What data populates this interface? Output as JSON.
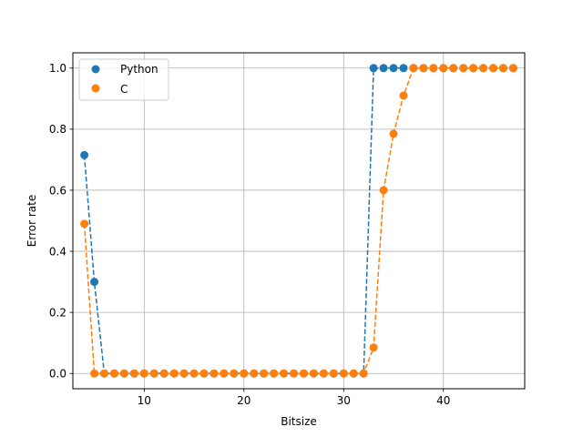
{
  "chart_data": {
    "type": "scatter",
    "title": "",
    "xlabel": "Bitsize",
    "ylabel": "Error rate",
    "xlim": [
      2.85,
      48.15
    ],
    "ylim": [
      -0.05,
      1.05
    ],
    "xticks": [
      10,
      20,
      30,
      40
    ],
    "yticks": [
      0.0,
      0.2,
      0.4,
      0.6,
      0.8,
      1.0
    ],
    "xtick_labels": [
      "10",
      "20",
      "30",
      "40"
    ],
    "ytick_labels": [
      "0.0",
      "0.2",
      "0.4",
      "0.6",
      "0.8",
      "1.0"
    ],
    "grid": true,
    "legend_position": "upper-left",
    "x": [
      4,
      5,
      6,
      7,
      8,
      9,
      10,
      11,
      12,
      13,
      14,
      15,
      16,
      17,
      18,
      19,
      20,
      21,
      22,
      23,
      24,
      25,
      26,
      27,
      28,
      29,
      30,
      31,
      32,
      33,
      34,
      35,
      36,
      37,
      38,
      39,
      40,
      41,
      42,
      43,
      44,
      45,
      46,
      47
    ],
    "series": [
      {
        "name": "Python",
        "color": "#1f77b4",
        "values": [
          0.715,
          0.3,
          0,
          0,
          0,
          0,
          0,
          0,
          0,
          0,
          0,
          0,
          0,
          0,
          0,
          0,
          0,
          0,
          0,
          0,
          0,
          0,
          0,
          0,
          0,
          0,
          0,
          0,
          0,
          1,
          1,
          1,
          1,
          1,
          1,
          1,
          1,
          1,
          1,
          1,
          1,
          1,
          1,
          1
        ]
      },
      {
        "name": "C",
        "color": "#ff7f0e",
        "values": [
          0.49,
          0,
          0,
          0,
          0,
          0,
          0,
          0,
          0,
          0,
          0,
          0,
          0,
          0,
          0,
          0,
          0,
          0,
          0,
          0,
          0,
          0,
          0,
          0,
          0,
          0,
          0,
          0,
          0,
          0.085,
          0.6,
          0.785,
          0.91,
          1,
          1,
          1,
          1,
          1,
          1,
          1,
          1,
          1,
          1,
          1
        ]
      }
    ]
  }
}
